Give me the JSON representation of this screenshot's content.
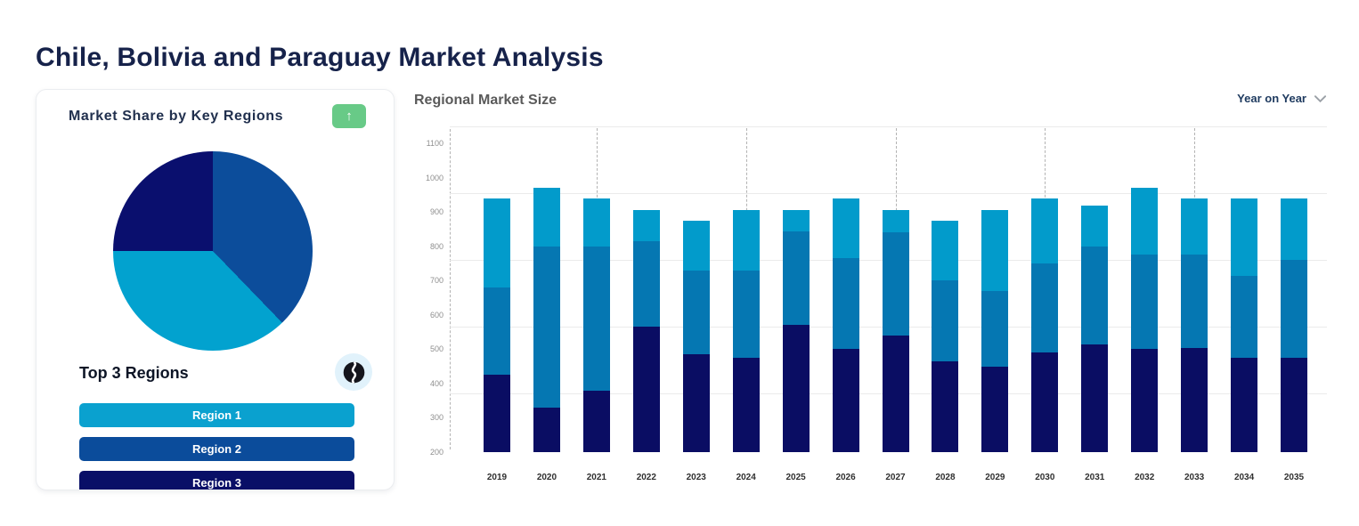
{
  "page": {
    "title": "Chile, Bolivia and Paraguay Market Analysis"
  },
  "market_share_card": {
    "title": "Market Share by Key Regions",
    "trend_button": {
      "icon": "up-arrow-icon",
      "glyph": "↑",
      "color": "#68ca87"
    },
    "subtitle": "Top 3 Regions",
    "globe_icon": "globe-icon",
    "regions": [
      {
        "label": "Region 1",
        "color": "#0aa1cf"
      },
      {
        "label": "Region 2",
        "color": "#0b4c9b"
      },
      {
        "label": "Region 3",
        "color": "#090f67"
      }
    ]
  },
  "regional_market_size": {
    "title": "Regional Market Size",
    "dropdown_label": "Year on Year",
    "dropdown_icon": "chevron-down-icon"
  },
  "chart_data": [
    {
      "type": "pie",
      "title": "Market Share by Key Regions",
      "start_angle_deg": 0,
      "direction": "clockwise",
      "slices": [
        {
          "label": "Region 2",
          "angle_deg": 136,
          "percent": 37.8,
          "color": "#0c4d9b"
        },
        {
          "label": "Region 1",
          "angle_deg": 134,
          "percent": 37.2,
          "color": "#02a2cf"
        },
        {
          "label": "Region 3",
          "angle_deg": 90,
          "percent": 25.0,
          "color": "#0a0f6e"
        }
      ],
      "legend": "none"
    },
    {
      "type": "bar",
      "stacked": true,
      "title": "Regional Market Size",
      "categories": [
        "2019",
        "2020",
        "2021",
        "2022",
        "2023",
        "2024",
        "2025",
        "2026",
        "2027",
        "2028",
        "2029",
        "2030",
        "2031",
        "2032",
        "2033",
        "2034",
        "2035"
      ],
      "baseline": 200,
      "ylim": [
        200,
        1150
      ],
      "yticks": [
        200,
        300,
        400,
        500,
        600,
        700,
        800,
        900,
        1000,
        1100
      ],
      "grid": "horizontal-light",
      "dashed_vertical_at_categories": [
        "2021",
        "2024",
        "2027",
        "2030",
        "2033"
      ],
      "series": [
        {
          "name": "Region 3",
          "color": "#0a0d63",
          "values": [
            225,
            130,
            180,
            365,
            285,
            275,
            370,
            300,
            340,
            265,
            250,
            290,
            315,
            300,
            305,
            275,
            275
          ]
        },
        {
          "name": "Region 2",
          "color": "#0577b2",
          "values": [
            255,
            470,
            420,
            250,
            245,
            255,
            275,
            265,
            300,
            235,
            220,
            260,
            285,
            275,
            270,
            240,
            285
          ]
        },
        {
          "name": "Region 1",
          "color": "#029bcb",
          "values": [
            260,
            170,
            140,
            90,
            145,
            175,
            60,
            175,
            65,
            175,
            235,
            190,
            120,
            195,
            165,
            225,
            180
          ]
        }
      ],
      "stack_totals": [
        940,
        970,
        940,
        905,
        875,
        905,
        905,
        940,
        905,
        875,
        905,
        940,
        920,
        970,
        940,
        940,
        940
      ]
    }
  ]
}
